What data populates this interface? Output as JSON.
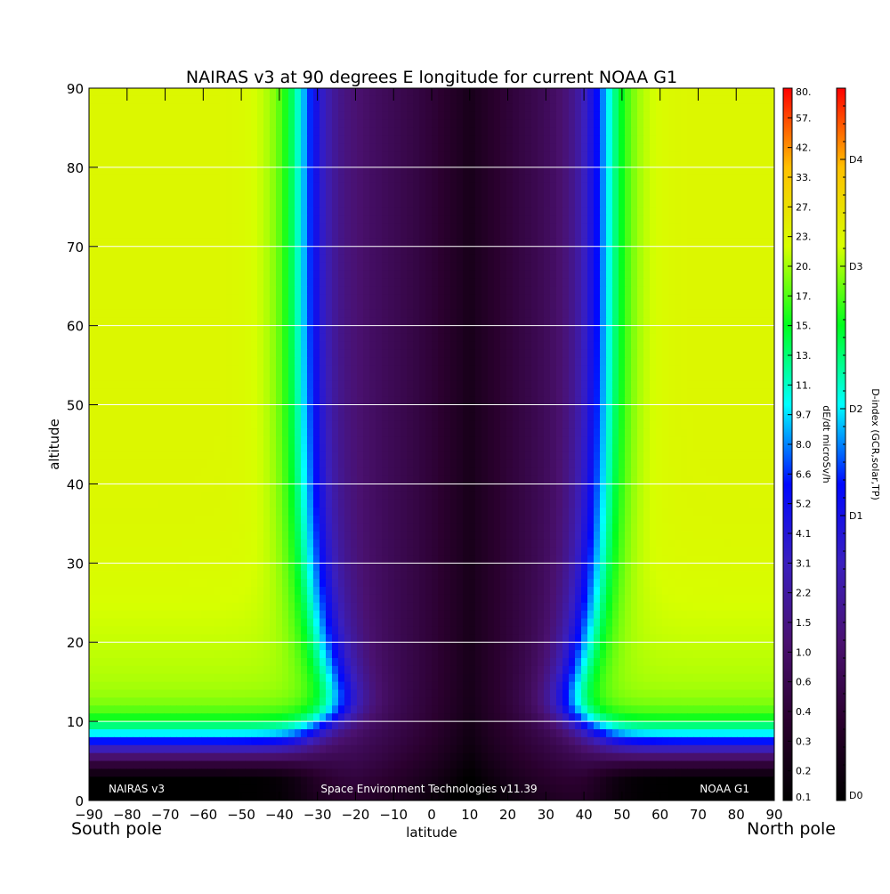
{
  "chart_data": {
    "type": "heatmap",
    "title": "NAIRAS v3 at 90 degrees E longitude for current NOAA G1",
    "xlabel": "latitude",
    "ylabel": "altitude",
    "x_ticks": [
      "-90",
      "-80",
      "-70",
      "-60",
      "-50",
      "-40",
      "-30",
      "-20",
      "-10",
      "0",
      "10",
      "20",
      "30",
      "40",
      "50",
      "60",
      "70",
      "80",
      "90"
    ],
    "y_ticks": [
      "0",
      "10",
      "20",
      "30",
      "40",
      "50",
      "60",
      "70",
      "80",
      "90"
    ],
    "xlim": [
      -90,
      90
    ],
    "ylim": [
      0,
      90
    ],
    "grid": "horizontal lines at every 10 units of altitude",
    "x_end_labels": {
      "left": "South pole",
      "right": "North pole"
    },
    "footer": {
      "left": "NAIRAS v3",
      "center": "Space Environment Technologies v11.39",
      "right": "NOAA G1"
    },
    "field": {
      "description_units": "dE/dt microSv/h",
      "plateau_value": 17,
      "low_altitude_peak_value": 0.6,
      "equatorial_min_value": 0.15,
      "cutoff_latitude_south": -33,
      "cutoff_latitude_north": 45,
      "transition_altitude": 10,
      "equator_center_latitude": 10
    },
    "colorbars": [
      {
        "label": "dE/dt microSv/h",
        "ticks": [
          "80.",
          "57.",
          "42.",
          "33.",
          "27.",
          "23.",
          "20.",
          "17.",
          "15.",
          "13.",
          "11.",
          "9.7",
          "8.0",
          "6.6",
          "5.2",
          "4.1",
          "3.1",
          "2.2",
          "1.5",
          "1.0",
          "0.6",
          "0.4",
          "0.3",
          "0.2",
          "0.1"
        ]
      },
      {
        "label": "D-index (GCR,solar,TP)",
        "ticks": [
          "D4",
          "D3",
          "D2",
          "D1",
          "D0"
        ],
        "tick_positions": [
          0.9,
          0.75,
          0.55,
          0.4,
          0.0
        ]
      }
    ],
    "colormap": [
      "#000000",
      "#2a002e",
      "#4a1170",
      "#3a1fbe",
      "#0008ff",
      "#00ffff",
      "#00ff1e",
      "#d7ff00",
      "#ffc000",
      "#ff0000"
    ]
  }
}
